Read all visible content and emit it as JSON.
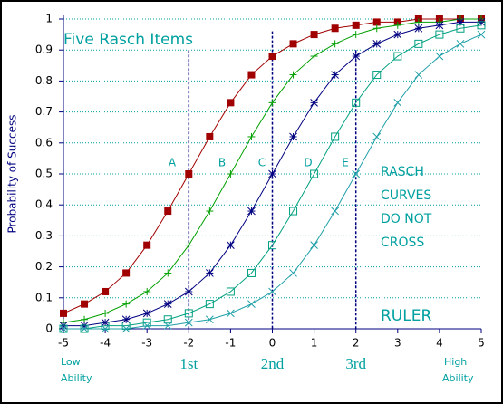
{
  "chart_data": {
    "type": "line",
    "title": "Five Rasch Items",
    "y_label": "Probability of Success",
    "x": [
      -5,
      -4.5,
      -4,
      -3.5,
      -3,
      -2.5,
      -2,
      -1.5,
      -1,
      -0.5,
      0,
      0.5,
      1,
      1.5,
      2,
      2.5,
      3,
      3.5,
      4,
      4.5,
      5
    ],
    "series": [
      {
        "name": "A",
        "color": "#a00000",
        "marker": "filled-square",
        "values": [
          0.05,
          0.08,
          0.12,
          0.18,
          0.27,
          0.38,
          0.5,
          0.62,
          0.73,
          0.82,
          0.88,
          0.92,
          0.95,
          0.97,
          0.98,
          0.99,
          0.99,
          1.0,
          1.0,
          1.0,
          1.0
        ]
      },
      {
        "name": "B",
        "color": "#00a000",
        "marker": "plus",
        "values": [
          0.02,
          0.03,
          0.05,
          0.08,
          0.12,
          0.18,
          0.27,
          0.38,
          0.5,
          0.62,
          0.73,
          0.82,
          0.88,
          0.92,
          0.95,
          0.97,
          0.98,
          0.99,
          0.99,
          1.0,
          1.0
        ]
      },
      {
        "name": "C",
        "color": "#000080",
        "marker": "asterisk",
        "values": [
          0.01,
          0.01,
          0.02,
          0.03,
          0.05,
          0.08,
          0.12,
          0.18,
          0.27,
          0.38,
          0.5,
          0.62,
          0.73,
          0.82,
          0.88,
          0.92,
          0.95,
          0.97,
          0.98,
          0.99,
          0.99
        ]
      },
      {
        "name": "D",
        "color": "#00a080",
        "marker": "open-square",
        "values": [
          0,
          0,
          0.01,
          0.01,
          0.02,
          0.03,
          0.05,
          0.08,
          0.12,
          0.18,
          0.27,
          0.38,
          0.5,
          0.62,
          0.73,
          0.82,
          0.88,
          0.92,
          0.95,
          0.97,
          0.98
        ]
      },
      {
        "name": "E",
        "color": "#20a0a8",
        "marker": "cross",
        "values": [
          0,
          0,
          0,
          0,
          0.01,
          0.01,
          0.02,
          0.03,
          0.05,
          0.08,
          0.12,
          0.18,
          0.27,
          0.38,
          0.5,
          0.62,
          0.73,
          0.82,
          0.88,
          0.92,
          0.95
        ]
      }
    ],
    "xlim": [
      -5,
      5
    ],
    "xticks": [
      -5,
      -4,
      -3,
      -2,
      -1,
      0,
      1,
      2,
      3,
      4,
      5
    ],
    "ylim": [
      0,
      1
    ],
    "yticks": [
      0,
      0.1,
      0.2,
      0.3,
      0.4,
      0.5,
      0.6,
      0.7,
      0.8,
      0.9,
      1
    ],
    "grid": true,
    "ruler": {
      "positions": [
        -2,
        0,
        2
      ],
      "labels": [
        "1st",
        "2nd",
        "3rd"
      ]
    },
    "x_low_label": [
      "Low",
      "Ability"
    ],
    "x_high_label": [
      "High",
      "Ability"
    ],
    "annotation": [
      "RASCH",
      "CURVES",
      "DO NOT",
      "CROSS"
    ],
    "ruler_label": "RULER"
  }
}
